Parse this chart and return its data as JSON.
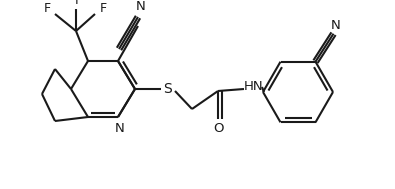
{
  "background_color": "#ffffff",
  "line_color": "#1a1a1a",
  "line_width": 1.5,
  "figsize": [
    3.95,
    1.89
  ],
  "dpi": 100,
  "font_size": 8.5,
  "xlim": [
    0,
    395
  ],
  "ylim": [
    0,
    189
  ]
}
